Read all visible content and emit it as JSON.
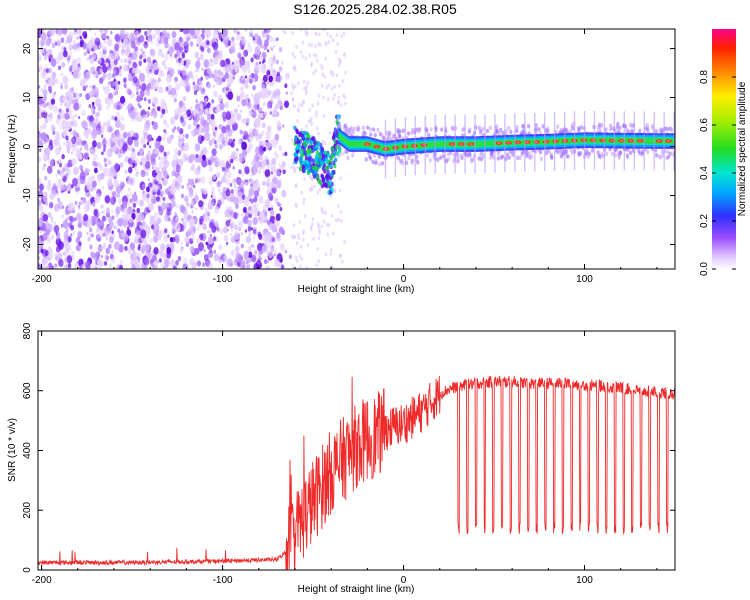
{
  "title": "S126.2025.284.02.38.R05",
  "colors": {
    "snr_line": "#ee2a2a",
    "axis": "#000000"
  },
  "chart_data": [
    {
      "type": "heatmap",
      "xlabel": "Height of straight line (km)",
      "ylabel": "Frequency (Hz)",
      "xlim": [
        -202,
        150
      ],
      "ylim": [
        -25,
        24
      ],
      "xticks": [
        -200,
        -100,
        0,
        100
      ],
      "yticks": [
        20,
        10,
        0,
        -10,
        -20
      ],
      "colorbar": {
        "label": "Normalized spectral amplitude",
        "range": [
          0,
          1
        ],
        "ticks": [
          "0.0",
          "0.2",
          "0.4",
          "0.6",
          "0.8"
        ],
        "colormap": "rainbow"
      },
      "series": [
        {
          "points_note": "spectral ridge center frequency vs height",
          "x": [
            -90,
            -60,
            -50,
            -45,
            -40,
            -37,
            -30,
            -20,
            -10,
            0,
            20,
            40,
            60,
            80,
            100,
            120,
            150
          ],
          "y": [
            1.0,
            0.0,
            -2.0,
            -4.0,
            -6.0,
            2.5,
            0.5,
            0.5,
            -0.5,
            0.0,
            0.5,
            0.5,
            0.8,
            1.0,
            1.3,
            1.2,
            1.1
          ]
        }
      ]
    },
    {
      "type": "line",
      "xlabel": "Height of straight line (km)",
      "ylabel": "SNR (10 * v/v)",
      "xlim": [
        -202,
        150
      ],
      "ylim": [
        0,
        800
      ],
      "xticks": [
        -200,
        -100,
        0,
        100
      ],
      "yticks": [
        0,
        200,
        400,
        600,
        800
      ],
      "series": [
        {
          "x": [
            -202,
            -150,
            -100,
            -70,
            -65,
            -60,
            -55,
            -50,
            -45,
            -40,
            -35,
            -30,
            -25,
            -20,
            -15,
            -10,
            -5,
            0,
            5,
            10,
            15,
            20,
            25,
            30,
            40,
            50,
            60,
            70,
            80,
            90,
            100,
            110,
            120,
            130,
            140,
            150
          ],
          "y": [
            25,
            25,
            30,
            35,
            60,
            120,
            180,
            230,
            280,
            330,
            360,
            390,
            420,
            440,
            450,
            470,
            480,
            490,
            510,
            530,
            560,
            590,
            605,
            615,
            625,
            630,
            630,
            625,
            625,
            625,
            620,
            615,
            610,
            600,
            595,
            590
          ]
        }
      ],
      "dropouts": {
        "x_start": 30,
        "x_end": 150,
        "count": 25,
        "low_value": 140
      }
    }
  ]
}
